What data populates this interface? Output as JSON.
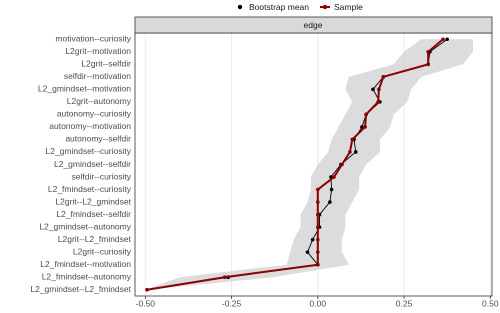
{
  "chart_data": {
    "type": "bootstrap-edges",
    "facet": "edge",
    "categories": [
      "motivation--curiosity",
      "L2grit--motivation",
      "L2grit--selfdir",
      "selfdir--motivation",
      "L2_gmindset--motivation",
      "L2grit--autonomy",
      "autonomy--curiosity",
      "autonomy--motivation",
      "autonomy--selfdir",
      "L2_gmindset--curiosity",
      "L2_gmindset--selfdir",
      "selfdir--curiosity",
      "L2_fmindset--curiosity",
      "L2grit--L2_gmindset",
      "L2_fmindset--selfdir",
      "L2_gmindset--autonomy",
      "L2grit--L2_fmindset",
      "L2grit--curiosity",
      "L2_fmindset--motivation",
      "L2_fmindset--autonomy",
      "L2_gmindset--L2_fmindset"
    ],
    "series": [
      {
        "name": "Bootstrap mean",
        "color": "#000000",
        "values": [
          0.375,
          0.325,
          0.32,
          0.19,
          0.16,
          0.18,
          0.14,
          0.128,
          0.105,
          0.11,
          0.067,
          0.038,
          0.04,
          0.035,
          0.005,
          0.005,
          -0.015,
          -0.03,
          0,
          -0.26,
          -0.495
        ]
      },
      {
        "name": "Sample",
        "color": "#8b0000",
        "values": [
          0.363,
          0.32,
          0.32,
          0.19,
          0.177,
          0.175,
          0.14,
          0.137,
          0.1,
          0.093,
          0.07,
          0.047,
          0,
          0,
          0,
          0,
          0,
          0,
          0,
          -0.27,
          -0.495
        ]
      }
    ],
    "band": {
      "color": "#d3d3d3",
      "lower": [
        0.3,
        0.25,
        0.22,
        0.09,
        0.08,
        0.1,
        0.08,
        0.06,
        0.04,
        0.03,
        0,
        -0.02,
        -0.02,
        -0.03,
        -0.05,
        -0.05,
        -0.07,
        -0.08,
        -0.09,
        -0.4,
        -0.5
      ],
      "upper": [
        0.45,
        0.45,
        0.42,
        0.3,
        0.27,
        0.26,
        0.22,
        0.21,
        0.18,
        0.18,
        0.14,
        0.12,
        0.12,
        0.1,
        0.08,
        0.08,
        0.07,
        0.07,
        0.09,
        -0.13,
        -0.49
      ]
    },
    "xlim": [
      -0.53,
      0.505
    ],
    "xticks": [
      {
        "value": -0.5,
        "label": "-0.50"
      },
      {
        "value": -0.25,
        "label": "-0.25"
      },
      {
        "value": 0,
        "label": "0.00"
      },
      {
        "value": 0.25,
        "label": "0.25"
      },
      {
        "value": 0.5,
        "label": "0.50"
      }
    ],
    "grid": true,
    "legend": "top"
  }
}
